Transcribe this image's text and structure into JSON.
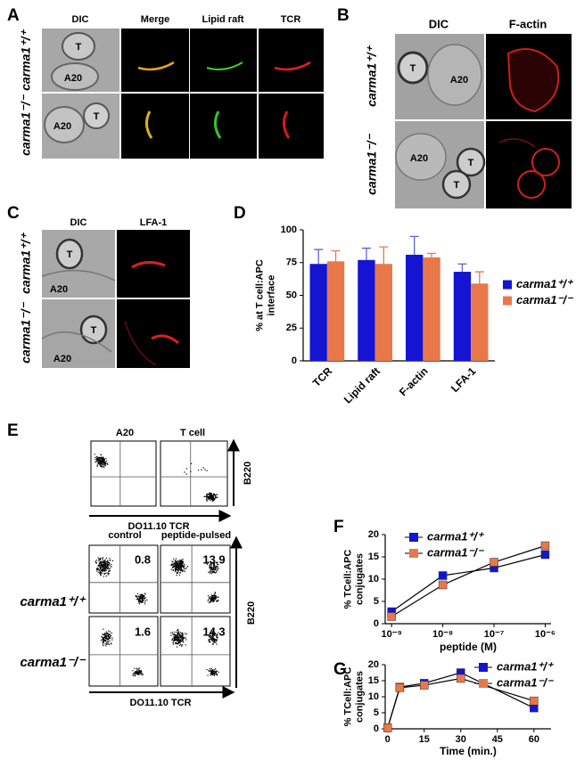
{
  "panel_labels": [
    "A",
    "B",
    "C",
    "D",
    "E",
    "F",
    "G"
  ],
  "panel_a": {
    "columns": [
      "DIC",
      "Merge",
      "Lipid raft",
      "TCR"
    ],
    "rows": [
      "carma1⁺/⁺",
      "carma1⁻/⁻"
    ],
    "cell_labels": [
      "T",
      "A20",
      "A20",
      "T"
    ]
  },
  "panel_b": {
    "columns": [
      "DIC",
      "F-actin"
    ],
    "rows": [
      "carma1⁺/⁺",
      "carma1⁻/⁻"
    ],
    "cell_labels": [
      "T",
      "A20",
      "A20",
      "T",
      "T"
    ]
  },
  "panel_c": {
    "columns": [
      "DIC",
      "LFA-1"
    ],
    "rows": [
      "carma1⁺/⁺",
      "carma1⁻/⁻"
    ],
    "cell_labels": [
      "T",
      "A20",
      "T",
      "A20"
    ]
  },
  "panel_e": {
    "top_columns": [
      "A20",
      "T cell"
    ],
    "bottom_columns": [
      "control",
      "peptide-pulsed"
    ],
    "rows": [
      "carma1⁺/⁺",
      "carma1⁻/⁻"
    ],
    "y_axis": "B220",
    "x_axis": "DO11.10 TCR",
    "quadrant_values": [
      [
        0.8,
        13.9
      ],
      [
        1.6,
        14.3
      ]
    ]
  },
  "chart_data": [
    {
      "type": "bar",
      "ylabel": [
        "% at T cell:APC",
        "interface"
      ],
      "categories": [
        "TCR",
        "Lipid raft",
        "F-actin",
        "LFA-1"
      ],
      "series": [
        {
          "name": "carma1⁺/⁺",
          "color": "#1414d2",
          "values": [
            74,
            77,
            81,
            68
          ],
          "errors": [
            11,
            9,
            14,
            6
          ]
        },
        {
          "name": "carma1⁻/⁻",
          "color": "#e8784a",
          "values": [
            76,
            74,
            79,
            59
          ],
          "errors": [
            8,
            13,
            3,
            9
          ]
        }
      ],
      "ylim": [
        0,
        100
      ],
      "yticks": [
        0,
        25,
        50,
        75,
        100
      ],
      "legend": "right"
    },
    {
      "type": "line",
      "ylabel": [
        "% TCell:APC",
        "conjugates"
      ],
      "xlabel": "peptide (M)",
      "xlog": true,
      "x": [
        1e-09,
        1e-08,
        1e-07,
        1e-06
      ],
      "series": [
        {
          "name": "carma1⁺/⁺",
          "color": "#1414d2",
          "values": [
            2.7,
            10.8,
            12.5,
            15.5
          ]
        },
        {
          "name": "carma1⁻/⁻",
          "color": "#e8784a",
          "values": [
            1.6,
            8.7,
            13.8,
            17.5
          ]
        }
      ],
      "xlim": [
        7.5e-10,
        1.3e-06
      ],
      "xticks": [
        {
          "value": 1e-09,
          "label": "10⁻⁹"
        },
        {
          "value": 1e-08,
          "label": "10⁻⁸"
        },
        {
          "value": 1e-07,
          "label": "10⁻⁷"
        },
        {
          "value": 1e-06,
          "label": "10⁻⁶"
        }
      ],
      "ylim": [
        0,
        20
      ],
      "yticks": [
        0,
        5,
        10,
        15,
        20
      ],
      "legend": "top-left"
    },
    {
      "type": "line",
      "ylabel": [
        "% TCell:APC",
        "conjugates"
      ],
      "xlabel": "Time (min.)",
      "xlog": false,
      "x": [
        0,
        5,
        15,
        30,
        60
      ],
      "series": [
        {
          "name": "carma1⁺/⁺",
          "color": "#1414d2",
          "values": [
            0.3,
            13,
            14.2,
            17.5,
            6.5
          ]
        },
        {
          "name": "carma1⁻/⁻",
          "color": "#e8784a",
          "values": [
            0.3,
            12.8,
            13.6,
            15.7,
            8.7
          ]
        }
      ],
      "xlim": [
        -1,
        67
      ],
      "xticks": [
        0,
        15,
        30,
        45,
        60
      ],
      "ylim": [
        0,
        20
      ],
      "yticks": [
        0,
        5,
        10,
        15,
        20
      ],
      "legend": "top-right"
    }
  ]
}
